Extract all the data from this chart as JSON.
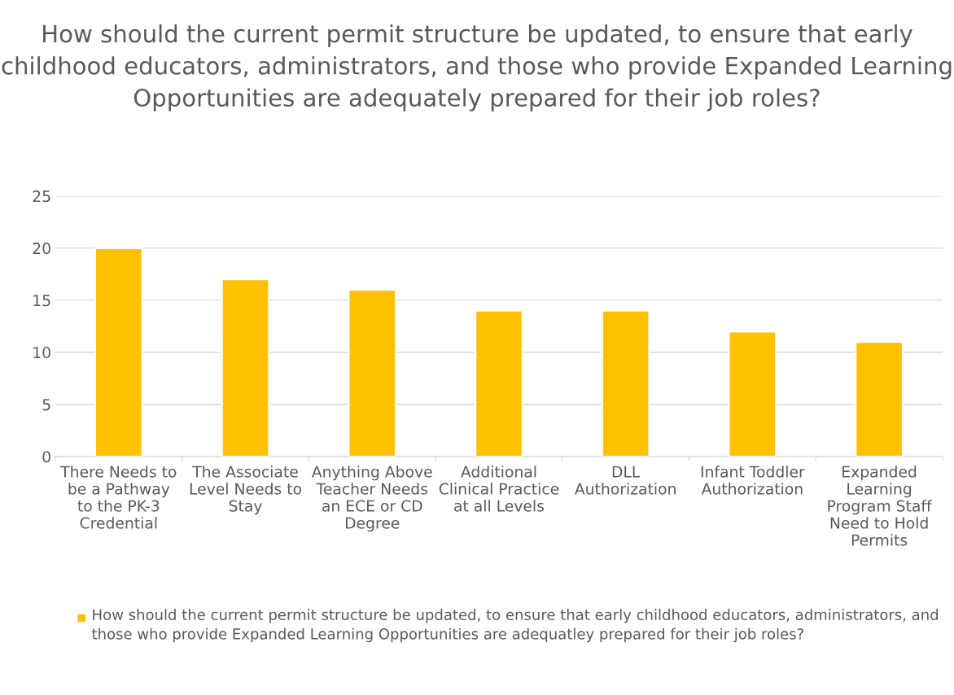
{
  "chart_data": {
    "type": "bar",
    "title": "How should the current permit structure be updated, to ensure that early childhood educators, administrators, and those who provide Expanded Learning Opportunities are adequately prepared for their job roles?",
    "categories": [
      "There Needs to\nbe a Pathway\nto the PK-3\nCredential",
      "The Associate\nLevel Needs to\nStay",
      "Anything Above\nTeacher Needs\nan ECE or CD\nDegree",
      "Additional\nClinical Practice\nat all Levels",
      "DLL\nAuthorization",
      "Infant Toddler\nAuthorization",
      "Expanded\nLearning\nProgram Staff\nNeed to Hold\nPermits"
    ],
    "series": [
      {
        "name": "How should the current permit structure be updated, to ensure that early childhood educators, administrators, and those who provide Expanded Learning Opportunities are adequatley prepared for their job roles?",
        "color": "#ffc000",
        "values": [
          20,
          17,
          16,
          14,
          14,
          12,
          11
        ]
      }
    ],
    "ylim": [
      0,
      25
    ],
    "yticks": [
      0,
      5,
      10,
      15,
      20,
      25
    ],
    "grid": "y",
    "legend": "bottom"
  }
}
